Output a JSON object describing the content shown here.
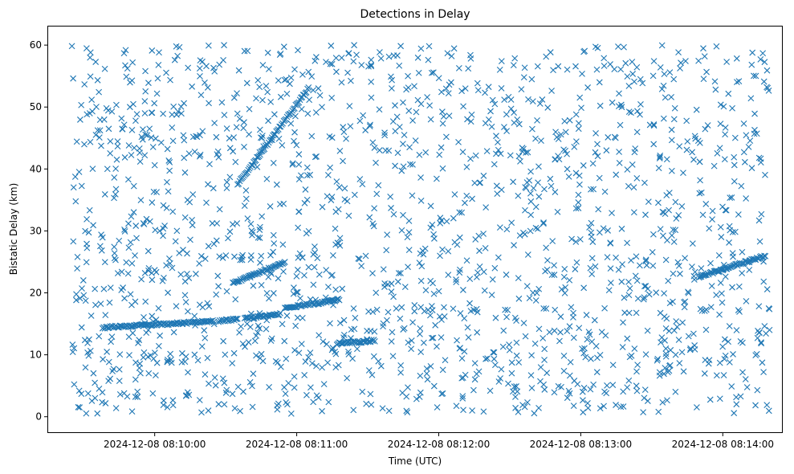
{
  "chart_data": {
    "type": "scatter",
    "title": "Detections in Delay",
    "xlabel": "Time (UTC)",
    "ylabel": "Bistatic Delay (km)",
    "marker": "x",
    "color": "#1f77b4",
    "grid": false,
    "legend": "none",
    "xlim": [
      "2024-12-08 08:09:15",
      "2024-12-08 08:14:25"
    ],
    "ylim": [
      -2.5,
      63
    ],
    "x_ticks": [
      "2024-12-08 08:10:00",
      "2024-12-08 08:11:00",
      "2024-12-08 08:12:00",
      "2024-12-08 08:13:00",
      "2024-12-08 08:14:00"
    ],
    "y_ticks": [
      0,
      10,
      20,
      30,
      40,
      50,
      60
    ],
    "time_range": [
      "2024-12-08 08:09:25",
      "2024-12-08 08:14:20"
    ],
    "delay_range": [
      0.5,
      60
    ],
    "approx_clutter_points": 1750,
    "tracks": [
      {
        "start": [
          "2024-12-08 08:09:38",
          14.4
        ],
        "end": [
          "2024-12-08 08:10:25",
          15.4
        ]
      },
      {
        "start": [
          "2024-12-08 08:10:27",
          15.4
        ],
        "end": [
          "2024-12-08 08:10:35",
          15.8
        ]
      },
      {
        "start": [
          "2024-12-08 08:10:38",
          15.8
        ],
        "end": [
          "2024-12-08 08:10:53",
          16.6
        ]
      },
      {
        "start": [
          "2024-12-08 08:10:33",
          21.5
        ],
        "end": [
          "2024-12-08 08:10:55",
          25.0
        ]
      },
      {
        "start": [
          "2024-12-08 08:10:35",
          37.5
        ],
        "end": [
          "2024-12-08 08:11:05",
          53.0
        ]
      },
      {
        "start": [
          "2024-12-08 08:10:55",
          17.5
        ],
        "end": [
          "2024-12-08 08:11:18",
          18.9
        ]
      },
      {
        "start": [
          "2024-12-08 08:11:17",
          11.8
        ],
        "end": [
          "2024-12-08 08:11:33",
          12.3
        ]
      },
      {
        "start": [
          "2024-12-08 08:13:50",
          22.6
        ],
        "end": [
          "2024-12-08 08:14:18",
          26.0
        ]
      }
    ]
  }
}
